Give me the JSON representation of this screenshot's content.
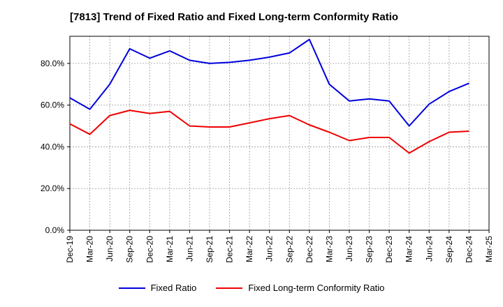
{
  "title": "[7813]  Trend of Fixed Ratio and Fixed Long-term Conformity Ratio",
  "chart_data": {
    "type": "line",
    "title": "[7813]  Trend of Fixed Ratio and Fixed Long-term Conformity Ratio",
    "xlabel": "",
    "ylabel": "",
    "ylim": [
      0,
      93
    ],
    "yticks": [
      0,
      20,
      40,
      60,
      80
    ],
    "ytick_labels": [
      "0.0%",
      "20.0%",
      "40.0%",
      "60.0%",
      "80.0%"
    ],
    "grid": true,
    "legend_position": "bottom",
    "x_tick_labels": [
      "Dec-19",
      "Mar-20",
      "Jun-20",
      "Sep-20",
      "Dec-20",
      "Mar-21",
      "Jun-21",
      "Sep-21",
      "Dec-21",
      "Mar-22",
      "Jun-22",
      "Sep-22",
      "Dec-22",
      "Mar-23",
      "Jun-23",
      "Sep-23",
      "Dec-23",
      "Mar-24",
      "Jun-24",
      "Sep-24",
      "Dec-24",
      "Mar-25"
    ],
    "categories": [
      "Dec-19",
      "Mar-20",
      "Jun-20",
      "Sep-20",
      "Dec-20",
      "Mar-21",
      "Jun-21",
      "Sep-21",
      "Dec-21",
      "Mar-22",
      "Jun-22",
      "Sep-22",
      "Dec-22",
      "Mar-23",
      "Jun-23",
      "Sep-23",
      "Dec-23",
      "Mar-24",
      "Jun-24",
      "Sep-24",
      "Dec-24"
    ],
    "series": [
      {
        "name": "Fixed Ratio",
        "color": "#0000dd",
        "values": [
          63.5,
          58.0,
          70.0,
          87.0,
          82.5,
          86.0,
          81.5,
          80.0,
          80.5,
          81.5,
          83.0,
          85.0,
          91.5,
          70.0,
          62.0,
          63.0,
          62.0,
          50.0,
          60.5,
          66.5,
          70.5
        ]
      },
      {
        "name": "Fixed Long-term Conformity Ratio",
        "color": "#ee0000",
        "values": [
          51.0,
          46.0,
          55.0,
          57.5,
          56.0,
          57.0,
          50.0,
          49.5,
          49.5,
          51.5,
          53.5,
          55.0,
          50.5,
          47.0,
          43.0,
          44.5,
          44.5,
          37.0,
          42.5,
          47.0,
          47.5
        ]
      }
    ]
  }
}
